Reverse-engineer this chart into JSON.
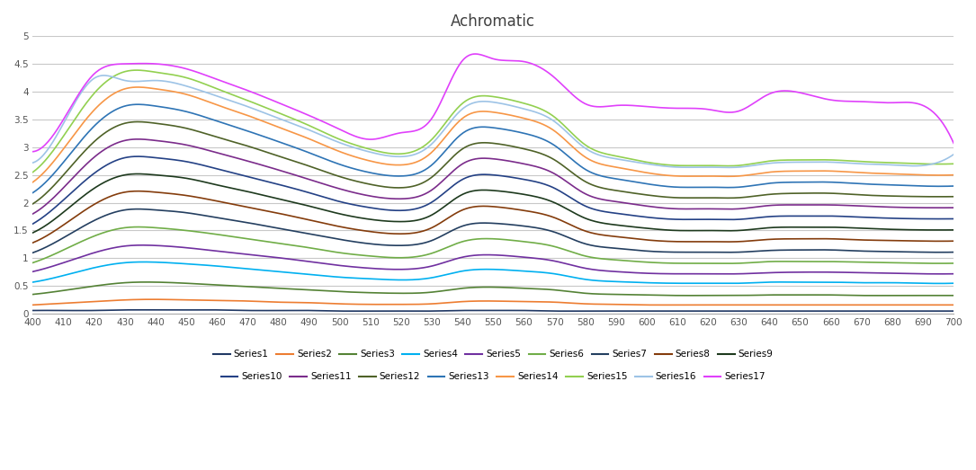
{
  "title": "Achromatic",
  "x_ticks": [
    400,
    410,
    420,
    430,
    440,
    450,
    460,
    470,
    480,
    490,
    500,
    510,
    520,
    530,
    540,
    550,
    560,
    570,
    580,
    590,
    600,
    610,
    620,
    630,
    640,
    650,
    660,
    670,
    680,
    690,
    700
  ],
  "x_range": [
    400,
    700
  ],
  "y_range": [
    0,
    5
  ],
  "y_ticks": [
    0,
    0.5,
    1,
    1.5,
    2,
    2.5,
    3,
    3.5,
    4,
    4.5,
    5
  ],
  "background_color": "#ffffff",
  "grid_color": "#c8c8c8",
  "series": [
    {
      "name": "Series1",
      "color": "#203864",
      "values": [
        0.06,
        0.06,
        0.06,
        0.07,
        0.07,
        0.07,
        0.07,
        0.06,
        0.06,
        0.06,
        0.05,
        0.05,
        0.05,
        0.05,
        0.06,
        0.06,
        0.06,
        0.05,
        0.05,
        0.05,
        0.05,
        0.05,
        0.05,
        0.05,
        0.05,
        0.05,
        0.05,
        0.05,
        0.05,
        0.05,
        0.05
      ]
    },
    {
      "name": "Series2",
      "color": "#ed7d31",
      "values": [
        0.16,
        0.19,
        0.22,
        0.25,
        0.26,
        0.25,
        0.24,
        0.23,
        0.21,
        0.2,
        0.18,
        0.17,
        0.17,
        0.18,
        0.22,
        0.23,
        0.22,
        0.21,
        0.18,
        0.17,
        0.16,
        0.16,
        0.16,
        0.16,
        0.16,
        0.16,
        0.16,
        0.16,
        0.16,
        0.16,
        0.16
      ]
    },
    {
      "name": "Series3",
      "color": "#548235",
      "values": [
        0.35,
        0.42,
        0.5,
        0.56,
        0.57,
        0.55,
        0.52,
        0.49,
        0.46,
        0.43,
        0.4,
        0.38,
        0.37,
        0.39,
        0.46,
        0.48,
        0.46,
        0.43,
        0.37,
        0.35,
        0.34,
        0.33,
        0.33,
        0.33,
        0.34,
        0.34,
        0.34,
        0.33,
        0.33,
        0.33,
        0.33
      ]
    },
    {
      "name": "Series4",
      "color": "#00b0f0",
      "values": [
        0.57,
        0.69,
        0.83,
        0.92,
        0.93,
        0.9,
        0.86,
        0.81,
        0.76,
        0.71,
        0.66,
        0.63,
        0.61,
        0.65,
        0.77,
        0.8,
        0.77,
        0.72,
        0.62,
        0.58,
        0.56,
        0.55,
        0.55,
        0.55,
        0.57,
        0.57,
        0.57,
        0.56,
        0.56,
        0.55,
        0.55
      ]
    },
    {
      "name": "Series5",
      "color": "#7030a0",
      "values": [
        0.76,
        0.92,
        1.1,
        1.22,
        1.23,
        1.19,
        1.13,
        1.07,
        1.01,
        0.94,
        0.87,
        0.82,
        0.8,
        0.86,
        1.02,
        1.06,
        1.02,
        0.95,
        0.82,
        0.76,
        0.73,
        0.72,
        0.72,
        0.72,
        0.74,
        0.75,
        0.75,
        0.74,
        0.73,
        0.72,
        0.72
      ]
    },
    {
      "name": "Series6",
      "color": "#70ad47",
      "values": [
        0.92,
        1.15,
        1.4,
        1.55,
        1.55,
        1.5,
        1.43,
        1.35,
        1.27,
        1.19,
        1.1,
        1.04,
        1.01,
        1.09,
        1.3,
        1.35,
        1.3,
        1.21,
        1.04,
        0.97,
        0.93,
        0.91,
        0.91,
        0.91,
        0.94,
        0.94,
        0.94,
        0.93,
        0.92,
        0.91,
        0.91
      ]
    },
    {
      "name": "Series7",
      "color": "#243f60",
      "values": [
        1.1,
        1.37,
        1.68,
        1.87,
        1.87,
        1.82,
        1.73,
        1.64,
        1.54,
        1.44,
        1.34,
        1.26,
        1.23,
        1.32,
        1.58,
        1.63,
        1.58,
        1.47,
        1.26,
        1.18,
        1.13,
        1.11,
        1.11,
        1.11,
        1.14,
        1.15,
        1.15,
        1.13,
        1.12,
        1.11,
        1.11
      ]
    },
    {
      "name": "Series8",
      "color": "#843c0c",
      "values": [
        1.28,
        1.6,
        1.97,
        2.19,
        2.19,
        2.13,
        2.03,
        1.92,
        1.81,
        1.69,
        1.57,
        1.48,
        1.44,
        1.55,
        1.87,
        1.93,
        1.86,
        1.73,
        1.49,
        1.39,
        1.33,
        1.3,
        1.3,
        1.3,
        1.34,
        1.35,
        1.35,
        1.33,
        1.32,
        1.31,
        1.31
      ]
    },
    {
      "name": "Series9",
      "color": "#1e3a1e",
      "values": [
        1.46,
        1.83,
        2.26,
        2.5,
        2.5,
        2.44,
        2.32,
        2.2,
        2.07,
        1.94,
        1.8,
        1.7,
        1.66,
        1.78,
        2.15,
        2.22,
        2.15,
        2.0,
        1.72,
        1.6,
        1.54,
        1.5,
        1.5,
        1.5,
        1.55,
        1.56,
        1.56,
        1.54,
        1.52,
        1.51,
        1.51
      ]
    },
    {
      "name": "Series10",
      "color": "#244185",
      "values": [
        1.62,
        2.05,
        2.53,
        2.81,
        2.81,
        2.74,
        2.61,
        2.47,
        2.33,
        2.18,
        2.02,
        1.91,
        1.86,
        2.01,
        2.42,
        2.5,
        2.42,
        2.26,
        1.94,
        1.81,
        1.74,
        1.7,
        1.7,
        1.7,
        1.75,
        1.76,
        1.76,
        1.74,
        1.72,
        1.71,
        1.71
      ]
    },
    {
      "name": "Series11",
      "color": "#7b2c8b",
      "values": [
        1.8,
        2.27,
        2.82,
        3.12,
        3.12,
        3.04,
        2.9,
        2.75,
        2.59,
        2.42,
        2.25,
        2.12,
        2.07,
        2.23,
        2.7,
        2.79,
        2.7,
        2.52,
        2.16,
        2.02,
        1.94,
        1.89,
        1.89,
        1.89,
        1.95,
        1.96,
        1.96,
        1.94,
        1.92,
        1.91,
        1.91
      ]
    },
    {
      "name": "Series12",
      "color": "#4f6228",
      "values": [
        1.98,
        2.5,
        3.1,
        3.43,
        3.43,
        3.34,
        3.18,
        3.02,
        2.84,
        2.66,
        2.47,
        2.33,
        2.27,
        2.46,
        2.97,
        3.07,
        2.97,
        2.77,
        2.38,
        2.22,
        2.14,
        2.09,
        2.09,
        2.09,
        2.15,
        2.17,
        2.17,
        2.14,
        2.12,
        2.11,
        2.11
      ]
    },
    {
      "name": "Series13",
      "color": "#2e74b5",
      "values": [
        2.18,
        2.73,
        3.38,
        3.74,
        3.74,
        3.64,
        3.47,
        3.29,
        3.1,
        2.9,
        2.69,
        2.54,
        2.48,
        2.68,
        3.25,
        3.35,
        3.25,
        3.03,
        2.6,
        2.43,
        2.34,
        2.28,
        2.28,
        2.28,
        2.35,
        2.37,
        2.37,
        2.34,
        2.32,
        2.3,
        2.3
      ]
    },
    {
      "name": "Series14",
      "color": "#f79646",
      "values": [
        2.37,
        2.97,
        3.67,
        4.05,
        4.05,
        3.95,
        3.76,
        3.57,
        3.36,
        3.15,
        2.92,
        2.75,
        2.68,
        2.91,
        3.52,
        3.63,
        3.52,
        3.29,
        2.82,
        2.64,
        2.54,
        2.48,
        2.48,
        2.48,
        2.55,
        2.57,
        2.57,
        2.54,
        2.52,
        2.5,
        2.5
      ]
    },
    {
      "name": "Series15",
      "color": "#92d050",
      "values": [
        2.55,
        3.2,
        3.97,
        4.36,
        4.35,
        4.25,
        4.05,
        3.84,
        3.62,
        3.39,
        3.14,
        2.96,
        2.88,
        3.14,
        3.79,
        3.91,
        3.79,
        3.54,
        3.04,
        2.84,
        2.73,
        2.67,
        2.67,
        2.67,
        2.75,
        2.77,
        2.77,
        2.74,
        2.72,
        2.7,
        2.7
      ]
    },
    {
      "name": "Series16",
      "color": "#9dc3e6",
      "values": [
        2.72,
        3.43,
        4.24,
        4.2,
        4.2,
        4.1,
        3.92,
        3.73,
        3.52,
        3.31,
        3.08,
        2.91,
        2.83,
        3.06,
        3.69,
        3.81,
        3.69,
        3.46,
        2.98,
        2.79,
        2.7,
        2.64,
        2.64,
        2.64,
        2.71,
        2.73,
        2.73,
        2.7,
        2.68,
        2.67,
        2.87
      ]
    },
    {
      "name": "Series17",
      "color": "#e040fb",
      "values": [
        2.92,
        3.5,
        4.32,
        4.5,
        4.5,
        4.41,
        4.22,
        4.02,
        3.8,
        3.57,
        3.32,
        3.14,
        3.26,
        3.52,
        4.56,
        4.59,
        4.54,
        4.25,
        3.78,
        3.75,
        3.73,
        3.7,
        3.68,
        3.65,
        3.96,
        3.98,
        3.85,
        3.82,
        3.8,
        3.75,
        3.07
      ]
    }
  ],
  "legend_row1": [
    "Series1",
    "Series2",
    "Series3",
    "Series4",
    "Series5",
    "Series6",
    "Series7",
    "Series8",
    "Series9"
  ],
  "legend_row2": [
    "Series10",
    "Series11",
    "Series12",
    "Series13",
    "Series14",
    "Series15",
    "Series16",
    "Series17"
  ]
}
